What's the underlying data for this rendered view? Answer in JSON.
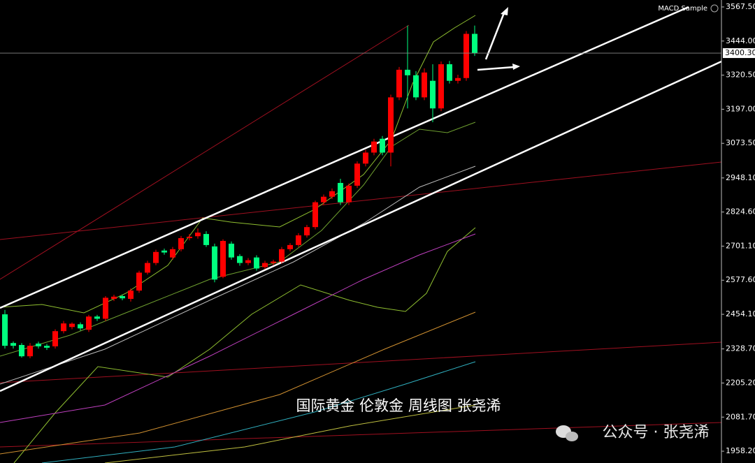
{
  "chart_data": {
    "type": "candlestick",
    "title": "MACD Sample",
    "caption": "国际黄金 伦敦金 周线图 张尧浠",
    "watermark": "公众号 · 张尧浠",
    "up_color": "#ff0000",
    "down_color": "#00ff7f",
    "ylim": [
      1915.4,
      3592.7
    ],
    "yticks": [
      {
        "value": 3567.5,
        "label": "3567.50"
      },
      {
        "value": 3444,
        "label": "3444.00"
      },
      {
        "value": 3320.5,
        "label": "3320.50"
      },
      {
        "value": 3197,
        "label": "3197.00"
      },
      {
        "value": 3073.5,
        "label": "3073.50"
      },
      {
        "value": 2948.1,
        "label": "2948.10"
      },
      {
        "value": 2824.6,
        "label": "2824.60"
      },
      {
        "value": 2701.1,
        "label": "2701.10"
      },
      {
        "value": 2577.6,
        "label": "2577.60"
      },
      {
        "value": 2454.1,
        "label": "2454.10"
      },
      {
        "value": 2328.7,
        "label": "2328.70"
      },
      {
        "value": 2205.2,
        "label": "2205.20"
      },
      {
        "value": 2081.7,
        "label": "2081.70"
      },
      {
        "value": 1958.2,
        "label": "1958.20"
      }
    ],
    "current_price": {
      "value": 3400.3,
      "label": "3400.30"
    },
    "open": [
      2454,
      2350,
      2343,
      2302,
      2348,
      2340,
      2338,
      2393,
      2408,
      2418,
      2398,
      2446,
      2438,
      2510,
      2520,
      2510,
      2540,
      2605,
      2640,
      2685,
      2660,
      2690,
      2730,
      2737,
      2745,
      2700,
      2590,
      2710,
      2665,
      2640,
      2660,
      2625,
      2640,
      2645,
      2690,
      2705,
      2740,
      2770,
      2860,
      2880,
      2930,
      2860,
      2920,
      3000,
      3040,
      3090,
      3040,
      3240,
      3340,
      3320,
      3240,
      3300,
      3200,
      3360,
      3300,
      3310,
      3470
    ],
    "close": [
      2340,
      2340,
      2302,
      2340,
      2338,
      2333,
      2393,
      2421,
      2420,
      2403,
      2446,
      2438,
      2514,
      2518,
      2512,
      2540,
      2605,
      2640,
      2680,
      2678,
      2690,
      2730,
      2735,
      2750,
      2705,
      2580,
      2720,
      2660,
      2640,
      2650,
      2620,
      2640,
      2645,
      2690,
      2705,
      2740,
      2770,
      2860,
      2880,
      2900,
      2860,
      2920,
      3000,
      3040,
      3080,
      3040,
      3240,
      3340,
      3320,
      3240,
      3330,
      3200,
      3360,
      3300,
      3310,
      3470,
      3400
    ],
    "high": [
      2470,
      2356,
      2350,
      2350,
      2355,
      2347,
      2400,
      2430,
      2425,
      2425,
      2452,
      2452,
      2520,
      2525,
      2525,
      2548,
      2612,
      2648,
      2688,
      2692,
      2698,
      2738,
      2745,
      2765,
      2755,
      2710,
      2726,
      2718,
      2672,
      2658,
      2668,
      2648,
      2652,
      2698,
      2712,
      2748,
      2778,
      2866,
      2888,
      2910,
      2945,
      2928,
      3008,
      3050,
      3090,
      3100,
      3250,
      3350,
      3500,
      3335,
      3345,
      3360,
      3370,
      3372,
      3322,
      3480,
      3500
    ],
    "low": [
      2330,
      2330,
      2297,
      2295,
      2330,
      2325,
      2330,
      2385,
      2400,
      2395,
      2390,
      2430,
      2430,
      2502,
      2505,
      2500,
      2532,
      2598,
      2632,
      2670,
      2652,
      2682,
      2722,
      2728,
      2698,
      2570,
      2585,
      2652,
      2630,
      2632,
      2612,
      2618,
      2632,
      2638,
      2682,
      2698,
      2732,
      2762,
      2850,
      2872,
      2850,
      2850,
      2912,
      2990,
      3030,
      3030,
      2990,
      3230,
      3200,
      3230,
      3230,
      3150,
      3190,
      3290,
      3290,
      3300,
      3390
    ]
  }
}
